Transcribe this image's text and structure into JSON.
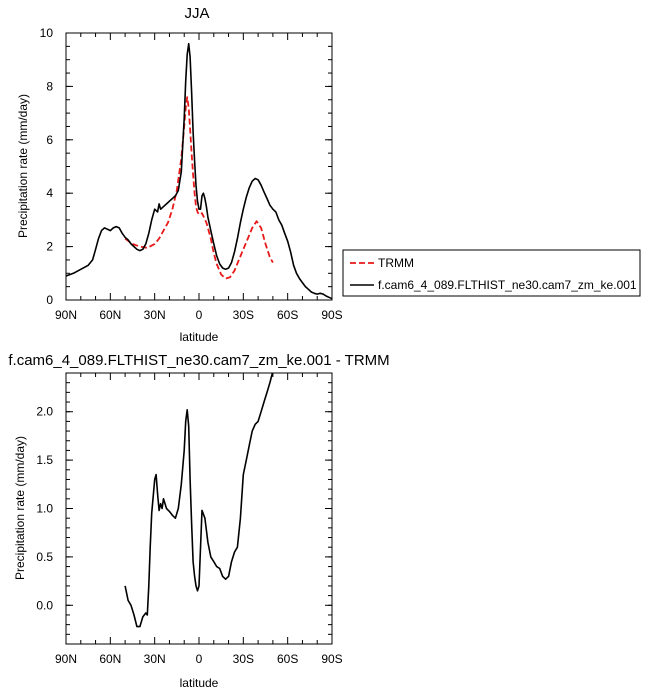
{
  "chart_data": [
    {
      "type": "line",
      "title": "JJA",
      "xlabel": "latitude",
      "ylabel": "Precipitation rate (mm/day)",
      "xlim": [
        90,
        -90
      ],
      "ylim": [
        0,
        10
      ],
      "x_ticks": [
        90,
        60,
        30,
        0,
        -30,
        -60,
        -90
      ],
      "x_tick_labels": [
        "90N",
        "60N",
        "30N",
        "0",
        "30S",
        "60S",
        "90S"
      ],
      "y_ticks": [
        0,
        2,
        4,
        6,
        8,
        10
      ],
      "y_tick_labels": [
        "0",
        "2",
        "4",
        "6",
        "8",
        "10"
      ],
      "grid": false,
      "legend_position": "right",
      "series": [
        {
          "name": "TRMM",
          "color": "#e8191a",
          "dash": "dashed",
          "x": [
            50,
            45,
            40,
            35,
            30,
            27,
            24,
            21,
            18,
            15,
            12,
            10,
            9,
            8,
            7,
            6,
            5,
            4,
            3,
            2,
            1,
            0,
            -2,
            -5,
            -8,
            -10,
            -12,
            -15,
            -18,
            -21,
            -24,
            -27,
            -30,
            -33,
            -36,
            -39,
            -42,
            -45,
            -48,
            -50
          ],
          "y": [
            2.3,
            2.1,
            2.0,
            1.95,
            2.1,
            2.3,
            2.6,
            2.9,
            3.4,
            4.1,
            5.3,
            6.5,
            7.2,
            7.6,
            7.2,
            6.4,
            5.5,
            4.7,
            4.0,
            3.5,
            3.3,
            3.2,
            3.25,
            2.9,
            2.3,
            1.75,
            1.35,
            0.95,
            0.8,
            0.85,
            1.1,
            1.5,
            1.9,
            2.3,
            2.7,
            2.95,
            2.7,
            2.1,
            1.6,
            1.4
          ]
        },
        {
          "name": "f.cam6_4_089.FLTHIST_ne30.cam7_zm_ke.001",
          "color": "#000000",
          "dash": "solid",
          "x": [
            90,
            85,
            80,
            75,
            72,
            70,
            68,
            66,
            64,
            62,
            60,
            58,
            56,
            54,
            52,
            50,
            48,
            46,
            44,
            42,
            40,
            38,
            36,
            34,
            32,
            30,
            28,
            27,
            26,
            25,
            24,
            22,
            20,
            18,
            16,
            14,
            12,
            10,
            9,
            8,
            7,
            6,
            5,
            4,
            3,
            2,
            1,
            0,
            -1,
            -2,
            -3,
            -4,
            -5,
            -6,
            -8,
            -10,
            -12,
            -14,
            -16,
            -18,
            -20,
            -22,
            -24,
            -26,
            -28,
            -30,
            -32,
            -34,
            -36,
            -38,
            -40,
            -42,
            -44,
            -46,
            -48,
            -50,
            -52,
            -54,
            -56,
            -58,
            -60,
            -62,
            -64,
            -66,
            -68,
            -70,
            -72,
            -74,
            -76,
            -78,
            -80,
            -82,
            -84,
            -86,
            -88,
            -90
          ],
          "y": [
            0.9,
            1.0,
            1.15,
            1.3,
            1.5,
            1.9,
            2.3,
            2.6,
            2.7,
            2.65,
            2.6,
            2.7,
            2.75,
            2.7,
            2.5,
            2.35,
            2.25,
            2.1,
            2.0,
            1.9,
            1.85,
            1.9,
            2.1,
            2.5,
            3.0,
            3.4,
            3.3,
            3.6,
            3.4,
            3.45,
            3.5,
            3.6,
            3.7,
            3.8,
            3.9,
            4.1,
            4.8,
            6.8,
            8.2,
            9.2,
            9.6,
            9.1,
            7.8,
            6.3,
            5.2,
            4.3,
            3.7,
            3.4,
            3.4,
            3.9,
            4.0,
            3.8,
            3.5,
            3.1,
            2.6,
            2.1,
            1.65,
            1.35,
            1.2,
            1.15,
            1.2,
            1.4,
            1.8,
            2.3,
            2.9,
            3.4,
            3.85,
            4.2,
            4.45,
            4.55,
            4.5,
            4.3,
            4.05,
            3.8,
            3.55,
            3.4,
            3.3,
            3.0,
            2.8,
            2.5,
            2.2,
            1.8,
            1.3,
            1.0,
            0.8,
            0.65,
            0.5,
            0.4,
            0.3,
            0.25,
            0.22,
            0.25,
            0.22,
            0.15,
            0.1,
            0.05
          ]
        }
      ]
    },
    {
      "type": "line",
      "title": "f.cam6_4_089.FLTHIST_ne30.cam7_zm_ke.001 - TRMM",
      "xlabel": "latitude",
      "ylabel": "Precipitation rate (mm/day)",
      "xlim": [
        90,
        -90
      ],
      "ylim": [
        -0.4,
        2.4
      ],
      "x_ticks": [
        90,
        60,
        30,
        0,
        -30,
        -60,
        -90
      ],
      "x_tick_labels": [
        "90N",
        "60N",
        "30N",
        "0",
        "30S",
        "60S",
        "90S"
      ],
      "y_ticks": [
        0.0,
        0.5,
        1.0,
        1.5,
        2.0
      ],
      "y_tick_labels": [
        "0.0",
        "0.5",
        "1.0",
        "1.5",
        "2.0"
      ],
      "grid": false,
      "series": [
        {
          "color": "#000000",
          "dash": "solid",
          "x": [
            50,
            48,
            46,
            44,
            42,
            40,
            38,
            36,
            35,
            34,
            33,
            32,
            30,
            29,
            28,
            27,
            26,
            25,
            24,
            22,
            20,
            18,
            16,
            14,
            12,
            10,
            9,
            8,
            7,
            6,
            5,
            4,
            3,
            2,
            1,
            0,
            -2,
            -4,
            -6,
            -8,
            -10,
            -12,
            -14,
            -16,
            -18,
            -20,
            -22,
            -24,
            -26,
            -28,
            -30,
            -32,
            -34,
            -36,
            -38,
            -40,
            -42,
            -44,
            -46,
            -48,
            -50
          ],
          "y": [
            0.2,
            0.05,
            0.0,
            -0.1,
            -0.22,
            -0.22,
            -0.12,
            -0.08,
            -0.1,
            0.2,
            0.6,
            0.95,
            1.3,
            1.35,
            1.15,
            0.98,
            1.05,
            1.0,
            1.1,
            1.0,
            0.97,
            0.93,
            0.9,
            1.0,
            1.25,
            1.6,
            1.9,
            2.02,
            1.85,
            1.3,
            0.85,
            0.45,
            0.3,
            0.2,
            0.15,
            0.2,
            0.98,
            0.9,
            0.65,
            0.5,
            0.45,
            0.4,
            0.38,
            0.3,
            0.27,
            0.3,
            0.45,
            0.55,
            0.6,
            0.9,
            1.35,
            1.5,
            1.65,
            1.8,
            1.87,
            1.9,
            2.0,
            2.1,
            2.2,
            2.3,
            2.42
          ]
        }
      ]
    }
  ]
}
